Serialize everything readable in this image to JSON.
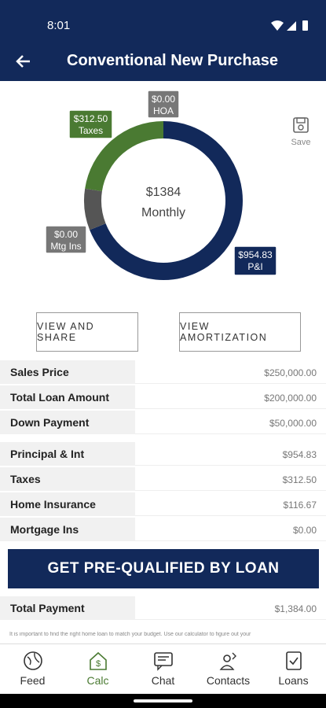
{
  "status_bar": {
    "time": "8:01"
  },
  "header": {
    "title": "Conventional New Purchase"
  },
  "donut": {
    "center_value": "$1384",
    "center_label": "Monthly",
    "values": [
      954.83,
      116.67,
      312.5,
      0
    ],
    "colors": [
      "#12295a",
      "#555555",
      "#4a7a32",
      "#777777"
    ],
    "callouts": [
      {
        "amount": "$954.83",
        "name": "P&I",
        "color": "#12295a"
      },
      {
        "amount": "$0.00",
        "name": "Mtg Ins",
        "color": "#777777"
      },
      {
        "amount": "$312.50",
        "name": "Taxes",
        "color": "#4a7a32"
      },
      {
        "amount": "$0.00",
        "name": "HOA",
        "color": "#777777"
      }
    ]
  },
  "save": "Save",
  "buttons": [
    "VIEW AND SHARE",
    "VIEW AMORTIZATION"
  ],
  "table": {
    "groups": [
      [
        [
          "Sales Price",
          "$250,000.00"
        ],
        [
          "Total Loan Amount",
          "$200,000.00"
        ],
        [
          "Down Payment",
          "$50,000.00"
        ]
      ],
      [
        [
          "Principal & Int",
          "$954.83"
        ],
        [
          "Taxes",
          "$312.50"
        ],
        [
          "Home Insurance",
          "$116.67"
        ],
        [
          "Mortgage Ins",
          "$0.00"
        ]
      ]
    ]
  },
  "cta": "GET PRE-QUALIFIED BY LOAN",
  "total": [
    "Total Payment",
    "$1,384.00"
  ],
  "disclaimer": "It is important to find the right home loan to match your budget. Use our calculator to figure out your",
  "nav": [
    "Feed",
    "Calc",
    "Chat",
    "Contacts",
    "Loans"
  ]
}
